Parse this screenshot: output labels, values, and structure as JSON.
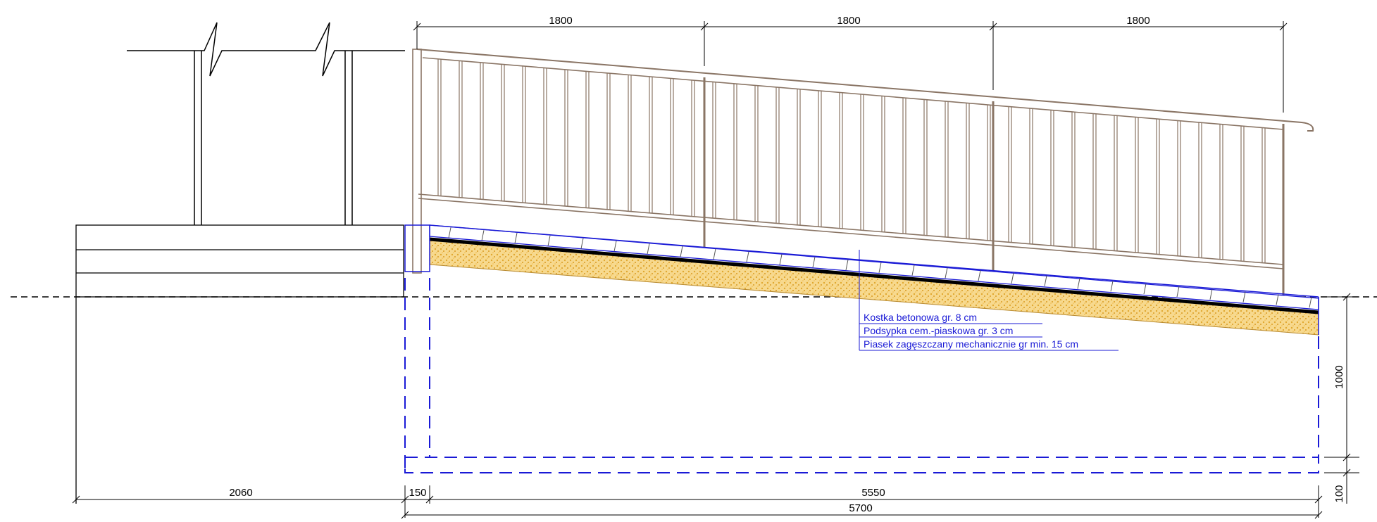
{
  "drawing": {
    "type": "ramp cross-section",
    "dimensions_top": [
      "1800",
      "1800",
      "1800"
    ],
    "dimensions_bottom": {
      "left_landing": "2060",
      "wall": "150",
      "ramp_run": "5550",
      "total": "5700"
    },
    "dimensions_right": {
      "foundation_depth": "1000",
      "footing": "100"
    },
    "layers": [
      "Kostka betonowa gr. 8 cm",
      "Podsypka cem.-piaskowa gr. 3 cm",
      "Piasek zagęszczany mechanicznie gr min. 15 cm"
    ],
    "colors": {
      "line": "#000000",
      "railing": "#8a7565",
      "annotation": "#1a1ad6",
      "sand_fill": "#f0c66a",
      "dashed_foundation": "#1a1ad6"
    }
  }
}
